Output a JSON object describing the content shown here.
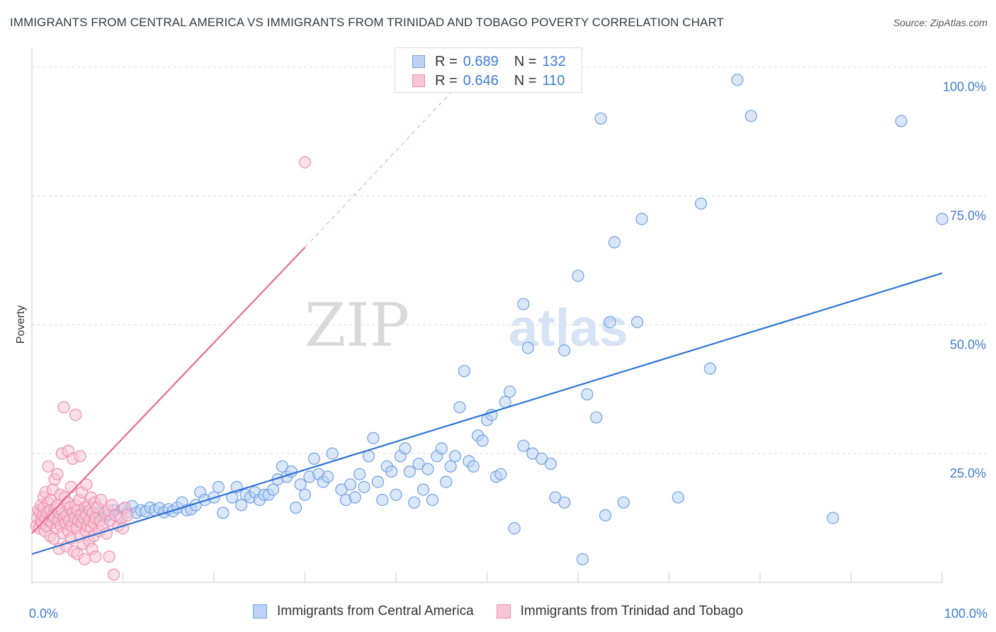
{
  "title": "IMMIGRANTS FROM CENTRAL AMERICA VS IMMIGRANTS FROM TRINIDAD AND TOBAGO POVERTY CORRELATION CHART",
  "source": "Source: ZipAtlas.com",
  "watermark": {
    "zip": "ZIP",
    "atlas": "atlas"
  },
  "legend": {
    "rows": [
      {
        "r_label": "R =",
        "r_value": "0.689",
        "n_label": "N =",
        "n_value": "132",
        "color": "#6fa0e6",
        "fill": "#bcd3f4"
      },
      {
        "r_label": "R =",
        "r_value": "0.646",
        "n_label": "N =",
        "n_value": "110",
        "color": "#ee8fad",
        "fill": "#f8c6d6"
      }
    ]
  },
  "bottom_legend": [
    {
      "label": "Immigrants from Central America",
      "color": "#6fa0e6",
      "fill": "#bcd3f4"
    },
    {
      "label": "Immigrants from Trinidad and Tobago",
      "color": "#ee8fad",
      "fill": "#f8c6d6"
    }
  ],
  "chart_data": {
    "type": "scatter",
    "title": "IMMIGRANTS FROM CENTRAL AMERICA VS IMMIGRANTS FROM TRINIDAD AND TOBAGO POVERTY CORRELATION CHART",
    "xlabel": "",
    "ylabel": "Poverty",
    "xlim": [
      0,
      100
    ],
    "ylim": [
      0,
      102
    ],
    "x_tick_labels": [
      {
        "value": 0,
        "label": "0.0%"
      },
      {
        "value": 100,
        "label": "100.0%"
      }
    ],
    "y_tick_labels": [
      {
        "value": 25,
        "label": "25.0%"
      },
      {
        "value": 50,
        "label": "50.0%"
      },
      {
        "value": 75,
        "label": "75.0%"
      },
      {
        "value": 100,
        "label": "100.0%"
      }
    ],
    "grid": {
      "horizontal_dashed": true,
      "vertical_minor_ticks": true
    },
    "series": [
      {
        "name": "Immigrants from Central America",
        "color": "#6fa0e6",
        "fill": "#bcd3f4",
        "trendline": {
          "x": [
            0,
            100
          ],
          "y": [
            5.5,
            60
          ]
        },
        "points": [
          [
            1.2,
            11.5
          ],
          [
            1.6,
            12.5
          ],
          [
            2.0,
            13.0
          ],
          [
            2.4,
            11.8
          ],
          [
            2.8,
            12.2
          ],
          [
            3.2,
            13.5
          ],
          [
            3.6,
            12.0
          ],
          [
            4.0,
            13.0
          ],
          [
            4.4,
            12.5
          ],
          [
            4.8,
            11.8
          ],
          [
            5.2,
            13.2
          ],
          [
            5.6,
            12.4
          ],
          [
            6.0,
            13.8
          ],
          [
            6.5,
            12.0
          ],
          [
            7.0,
            13.0
          ],
          [
            7.5,
            13.5
          ],
          [
            8.0,
            12.6
          ],
          [
            8.5,
            13.2
          ],
          [
            9.0,
            14.0
          ],
          [
            9.5,
            12.8
          ],
          [
            10.0,
            14.2
          ],
          [
            10.5,
            13.6
          ],
          [
            11.0,
            14.8
          ],
          [
            11.5,
            13.5
          ],
          [
            12.0,
            14.0
          ],
          [
            12.5,
            13.8
          ],
          [
            13.0,
            14.5
          ],
          [
            13.5,
            14.0
          ],
          [
            14.0,
            14.4
          ],
          [
            14.5,
            13.6
          ],
          [
            15.0,
            14.2
          ],
          [
            15.5,
            13.8
          ],
          [
            16.0,
            14.5
          ],
          [
            16.5,
            15.5
          ],
          [
            17.0,
            14.0
          ],
          [
            17.5,
            14.2
          ],
          [
            18.0,
            15.0
          ],
          [
            18.5,
            17.5
          ],
          [
            19.0,
            16.0
          ],
          [
            20.0,
            16.5
          ],
          [
            20.5,
            18.5
          ],
          [
            21.0,
            13.5
          ],
          [
            22.0,
            16.5
          ],
          [
            22.5,
            18.5
          ],
          [
            23.0,
            15.0
          ],
          [
            23.5,
            17.0
          ],
          [
            24.0,
            16.5
          ],
          [
            24.5,
            17.5
          ],
          [
            25.0,
            16.0
          ],
          [
            25.5,
            17.0
          ],
          [
            26.0,
            17.0
          ],
          [
            26.5,
            18.0
          ],
          [
            27.0,
            20.0
          ],
          [
            27.5,
            22.5
          ],
          [
            28.0,
            20.5
          ],
          [
            28.5,
            21.5
          ],
          [
            29.0,
            14.5
          ],
          [
            29.5,
            19.0
          ],
          [
            30.0,
            17.0
          ],
          [
            30.5,
            20.5
          ],
          [
            31.0,
            24.0
          ],
          [
            31.5,
            21.0
          ],
          [
            32.0,
            19.5
          ],
          [
            32.5,
            20.5
          ],
          [
            33.0,
            25.0
          ],
          [
            34.0,
            18.0
          ],
          [
            34.5,
            16.0
          ],
          [
            35.0,
            19.0
          ],
          [
            35.5,
            16.5
          ],
          [
            36.0,
            21.0
          ],
          [
            36.5,
            18.5
          ],
          [
            37.0,
            24.5
          ],
          [
            37.5,
            28.0
          ],
          [
            38.0,
            19.5
          ],
          [
            38.5,
            16.0
          ],
          [
            39.0,
            22.5
          ],
          [
            39.5,
            21.5
          ],
          [
            40.0,
            17.0
          ],
          [
            40.5,
            24.5
          ],
          [
            41.0,
            26.0
          ],
          [
            41.5,
            21.5
          ],
          [
            42.0,
            15.5
          ],
          [
            42.5,
            23.0
          ],
          [
            43.0,
            18.0
          ],
          [
            43.5,
            22.0
          ],
          [
            44.0,
            16.0
          ],
          [
            44.5,
            24.5
          ],
          [
            45.0,
            26.0
          ],
          [
            45.5,
            19.5
          ],
          [
            46.0,
            22.5
          ],
          [
            46.5,
            24.5
          ],
          [
            47.0,
            34.0
          ],
          [
            47.5,
            41.0
          ],
          [
            48.0,
            23.5
          ],
          [
            48.5,
            22.5
          ],
          [
            49.0,
            28.5
          ],
          [
            49.5,
            27.5
          ],
          [
            50.0,
            31.5
          ],
          [
            50.5,
            32.5
          ],
          [
            51.0,
            20.5
          ],
          [
            51.5,
            21.0
          ],
          [
            52.0,
            35.0
          ],
          [
            52.5,
            37.0
          ],
          [
            53.0,
            10.5
          ],
          [
            54.0,
            54.0
          ],
          [
            54.5,
            45.5
          ],
          [
            54.0,
            26.5
          ],
          [
            55.0,
            25.0
          ],
          [
            56.0,
            24.0
          ],
          [
            57.0,
            23.0
          ],
          [
            57.5,
            16.5
          ],
          [
            58.5,
            15.5
          ],
          [
            58.5,
            45.0
          ],
          [
            60.0,
            59.5
          ],
          [
            60.5,
            4.5
          ],
          [
            61.0,
            36.5
          ],
          [
            62.0,
            32.0
          ],
          [
            62.5,
            90.0
          ],
          [
            63.0,
            13.0
          ],
          [
            63.5,
            50.5
          ],
          [
            64.0,
            66.0
          ],
          [
            65.0,
            15.5
          ],
          [
            66.5,
            50.5
          ],
          [
            67.0,
            70.5
          ],
          [
            71.0,
            16.5
          ],
          [
            73.5,
            73.5
          ],
          [
            74.5,
            41.5
          ],
          [
            77.5,
            97.5
          ],
          [
            79.0,
            90.5
          ],
          [
            88.0,
            12.5
          ],
          [
            95.5,
            89.5
          ],
          [
            100,
            70.5
          ]
        ]
      },
      {
        "name": "Immigrants from Trinidad and Tobago",
        "color": "#ee8fad",
        "fill": "#f8c6d6",
        "trendline": {
          "x": [
            0,
            30
          ],
          "y": [
            9.5,
            65
          ]
        },
        "trendline_extension": {
          "x": [
            30,
            46
          ],
          "y": [
            65,
            95
          ]
        },
        "points": [
          [
            0.5,
            11.0
          ],
          [
            0.6,
            12.5
          ],
          [
            0.7,
            14.0
          ],
          [
            0.8,
            10.5
          ],
          [
            0.9,
            13.5
          ],
          [
            1.0,
            12.0
          ],
          [
            1.0,
            15.0
          ],
          [
            1.1,
            11.5
          ],
          [
            1.2,
            13.0
          ],
          [
            1.3,
            14.5
          ],
          [
            1.3,
            16.5
          ],
          [
            1.4,
            10.0
          ],
          [
            1.5,
            12.5
          ],
          [
            1.5,
            17.5
          ],
          [
            1.6,
            11.0
          ],
          [
            1.7,
            13.5
          ],
          [
            1.8,
            15.5
          ],
          [
            1.8,
            22.5
          ],
          [
            1.9,
            12.0
          ],
          [
            2.0,
            14.0
          ],
          [
            2.0,
            9.0
          ],
          [
            2.1,
            16.0
          ],
          [
            2.2,
            11.5
          ],
          [
            2.3,
            13.0
          ],
          [
            2.3,
            18.0
          ],
          [
            2.4,
            8.5
          ],
          [
            2.5,
            12.5
          ],
          [
            2.5,
            20.0
          ],
          [
            2.6,
            14.5
          ],
          [
            2.7,
            10.5
          ],
          [
            2.8,
            15.0
          ],
          [
            2.8,
            21.0
          ],
          [
            2.9,
            12.0
          ],
          [
            3.0,
            13.5
          ],
          [
            3.0,
            6.5
          ],
          [
            3.1,
            17.0
          ],
          [
            3.2,
            11.0
          ],
          [
            3.3,
            14.0
          ],
          [
            3.3,
            25.0
          ],
          [
            3.4,
            9.5
          ],
          [
            3.5,
            12.5
          ],
          [
            3.5,
            34.0
          ],
          [
            3.6,
            16.5
          ],
          [
            3.7,
            11.5
          ],
          [
            3.8,
            13.0
          ],
          [
            3.8,
            7.0
          ],
          [
            3.9,
            15.5
          ],
          [
            4.0,
            10.0
          ],
          [
            4.0,
            25.5
          ],
          [
            4.1,
            12.0
          ],
          [
            4.2,
            14.5
          ],
          [
            4.3,
            8.5
          ],
          [
            4.3,
            18.5
          ],
          [
            4.4,
            11.0
          ],
          [
            4.5,
            13.5
          ],
          [
            4.5,
            24.0
          ],
          [
            4.6,
            6.0
          ],
          [
            4.7,
            12.5
          ],
          [
            4.8,
            15.0
          ],
          [
            4.8,
            32.5
          ],
          [
            4.9,
            10.5
          ],
          [
            5.0,
            14.0
          ],
          [
            5.0,
            5.5
          ],
          [
            5.1,
            12.0
          ],
          [
            5.2,
            16.0
          ],
          [
            5.3,
            9.0
          ],
          [
            5.3,
            24.5
          ],
          [
            5.4,
            13.0
          ],
          [
            5.5,
            11.5
          ],
          [
            5.5,
            17.5
          ],
          [
            5.6,
            7.5
          ],
          [
            5.7,
            12.5
          ],
          [
            5.8,
            14.5
          ],
          [
            5.8,
            4.5
          ],
          [
            5.9,
            10.0
          ],
          [
            6.0,
            13.0
          ],
          [
            6.0,
            19.0
          ],
          [
            6.1,
            11.0
          ],
          [
            6.2,
            15.0
          ],
          [
            6.3,
            8.0
          ],
          [
            6.3,
            12.0
          ],
          [
            6.4,
            14.0
          ],
          [
            6.5,
            10.5
          ],
          [
            6.5,
            16.5
          ],
          [
            6.6,
            6.5
          ],
          [
            6.7,
            13.5
          ],
          [
            6.8,
            11.5
          ],
          [
            6.8,
            9.0
          ],
          [
            6.9,
            15.5
          ],
          [
            7.0,
            12.5
          ],
          [
            7.0,
            5.0
          ],
          [
            7.2,
            14.5
          ],
          [
            7.4,
            10.0
          ],
          [
            7.5,
            12.0
          ],
          [
            7.6,
            16.0
          ],
          [
            7.8,
            11.0
          ],
          [
            8.0,
            13.5
          ],
          [
            8.2,
            9.5
          ],
          [
            8.4,
            14.0
          ],
          [
            8.5,
            5.0
          ],
          [
            8.6,
            12.0
          ],
          [
            8.8,
            15.0
          ],
          [
            9.0,
            1.5
          ],
          [
            9.2,
            13.0
          ],
          [
            9.5,
            11.0
          ],
          [
            9.8,
            12.5
          ],
          [
            10.0,
            10.5
          ],
          [
            10.2,
            14.5
          ],
          [
            10.5,
            13.0
          ],
          [
            30.0,
            81.5
          ]
        ]
      }
    ]
  }
}
